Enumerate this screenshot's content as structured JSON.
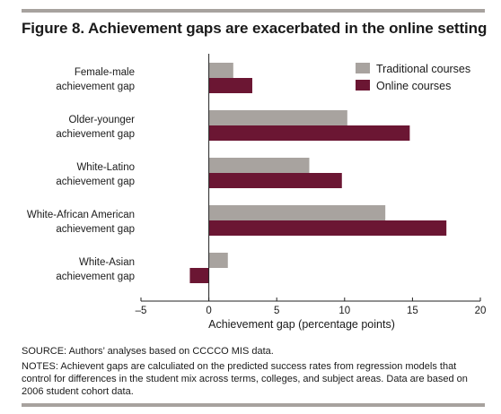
{
  "figure": {
    "title": "Figure 8. Achievement gaps are exacerbated in the online setting",
    "source": "SOURCE: Authors’ analyses based on CCCCO MIS data.",
    "notes": "NOTES: Achievent gaps are calculiated on the predicted success rates from regression models that control for differences in the student mix across terms, colleges, and subject areas. Data are based on 2006 student cohort data."
  },
  "colors": {
    "traditional": "#a8a39f",
    "online": "#6b1633",
    "rule": "#a7a29e",
    "axis": "#222222"
  },
  "chart_data": {
    "type": "bar",
    "orientation": "horizontal",
    "categories": [
      [
        "Female-male",
        "achievement gap"
      ],
      [
        "Older-younger",
        "achievement gap"
      ],
      [
        "White-Latino",
        "achievement gap"
      ],
      [
        "White-African American",
        "achievement gap"
      ],
      [
        "White-Asian",
        "achievement gap"
      ]
    ],
    "series": [
      {
        "name": "Traditional courses",
        "values": [
          1.8,
          10.2,
          7.4,
          13.0,
          1.4
        ]
      },
      {
        "name": "Online courses",
        "values": [
          3.2,
          14.8,
          9.8,
          17.5,
          -1.4
        ]
      }
    ],
    "xlabel": "Achievement gap (percentage points)",
    "xlim": [
      -5,
      20
    ],
    "xticks": [
      -5,
      0,
      5,
      10,
      15,
      20
    ],
    "xtick_labels": [
      "–5",
      "0",
      "5",
      "10",
      "15",
      "20"
    ],
    "legend_position": "top-right",
    "grid": false
  }
}
